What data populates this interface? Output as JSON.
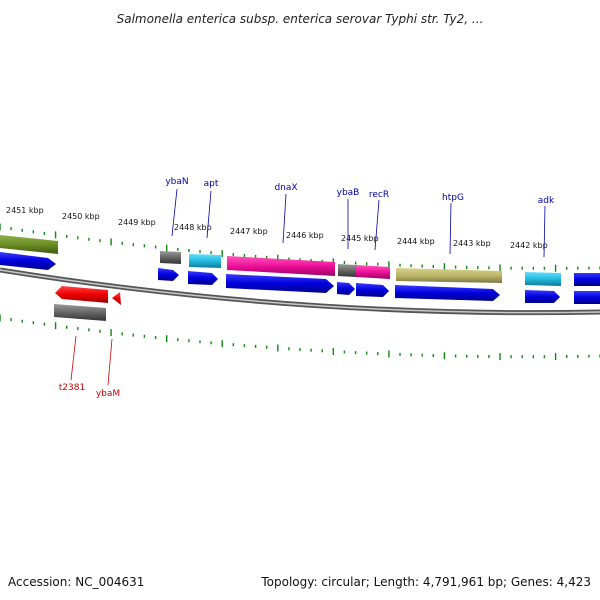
{
  "header": {
    "title": "Salmonella enterica subsp. enterica serovar Typhi str. Ty2, ..."
  },
  "footer": {
    "accession": "Accession: NC_004631",
    "summary": "Topology: circular; Length: 4,791,961 bp; Genes: 4,423"
  },
  "ruler": {
    "ticks": [
      "2451 kbp",
      "2450 kbp",
      "2449 kbp",
      "2448 kbp",
      "2447 kbp",
      "2446 kbp",
      "2445 kbp",
      "2444 kbp",
      "2443 kbp",
      "2442 kbp"
    ]
  },
  "genes": {
    "forward_labels": [
      "ybaN",
      "apt",
      "dnaX",
      "ybaB",
      "recR",
      "htpG",
      "adk"
    ],
    "reverse_labels": [
      "t2381",
      "ybaM"
    ]
  },
  "colors": {
    "cds": "#0000dd",
    "trna": "#dd0000",
    "olive": "#6b8e23",
    "gray": "#666666",
    "cyan": "#22bbdd",
    "magenta": "#ee1199",
    "khaki": "#bdb76b",
    "tick": "#118811",
    "fwd_label": "#0000aa",
    "rev_label": "#cc0000"
  }
}
